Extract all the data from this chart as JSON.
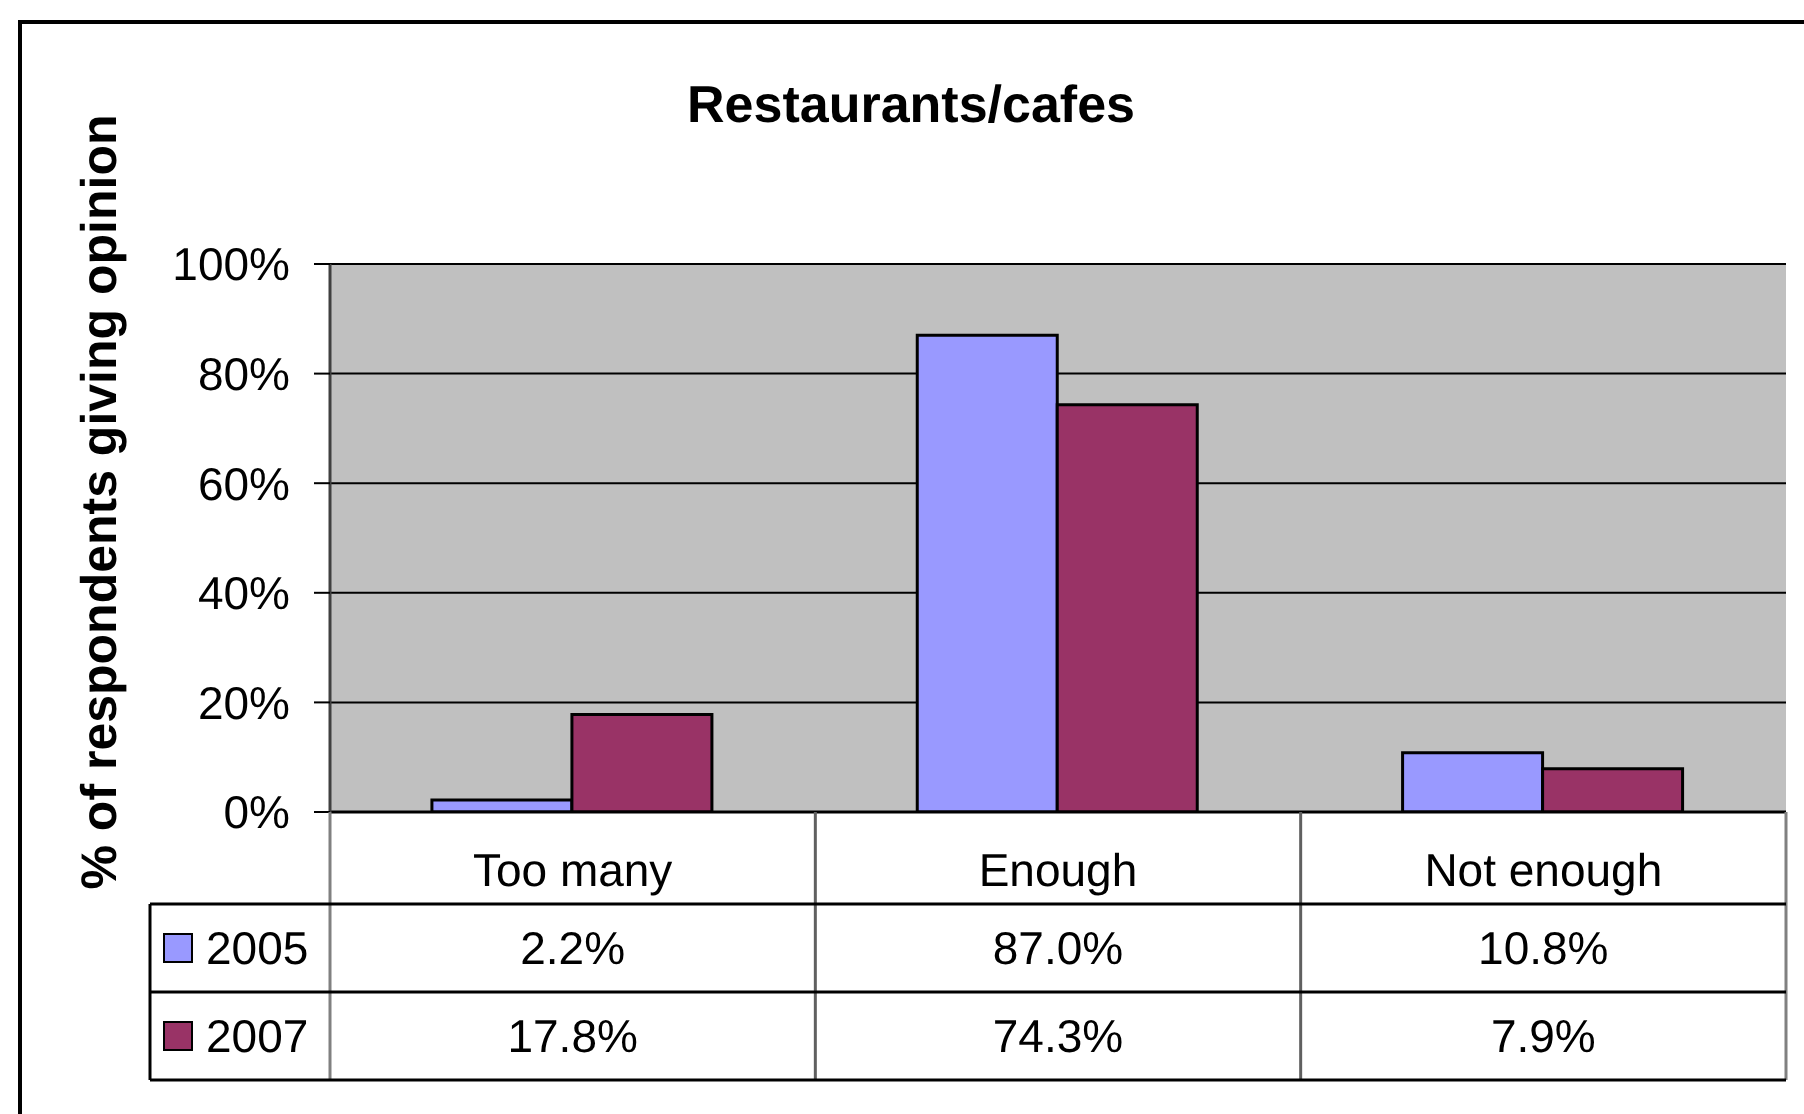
{
  "chart_data": {
    "type": "bar",
    "title": "Restaurants/cafes",
    "ylabel": "% of respondents giving opinion",
    "categories": [
      "Too many",
      "Enough",
      "Not enough"
    ],
    "series": [
      {
        "name": "2005",
        "color": "#9999ff",
        "values": [
          2.2,
          87.0,
          10.8
        ],
        "value_labels": [
          "2.2%",
          "87.0%",
          "10.8%"
        ]
      },
      {
        "name": "2007",
        "color": "#993366",
        "values": [
          17.8,
          74.3,
          7.9
        ],
        "value_labels": [
          "17.8%",
          "74.3%",
          "7.9%"
        ]
      }
    ],
    "ylim": [
      0,
      100
    ],
    "yticks": [
      {
        "value": 0,
        "label": "0%"
      },
      {
        "value": 20,
        "label": "20%"
      },
      {
        "value": 40,
        "label": "40%"
      },
      {
        "value": 60,
        "label": "60%"
      },
      {
        "value": 80,
        "label": "80%"
      },
      {
        "value": 100,
        "label": "100%"
      }
    ],
    "grid": "y",
    "legend": "bottom left"
  }
}
